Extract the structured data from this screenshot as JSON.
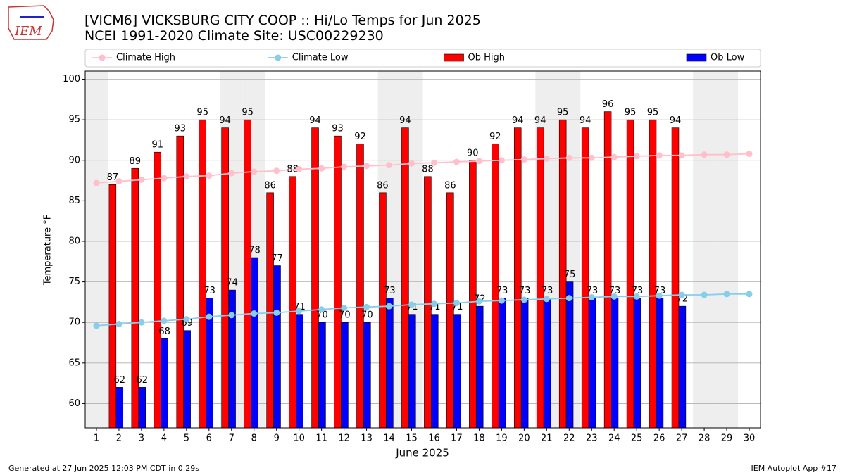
{
  "chart_data": {
    "type": "bar",
    "title": "[VICM6] VICKSBURG CITY COOP :: Hi/Lo Temps for Jun 2025",
    "subtitle": "NCEI 1991-2020 Climate Site: USC00229230",
    "x_label": "June 2025",
    "y_label": "Temperature °F",
    "logo_text": "IEM",
    "footer_left": "Generated at 27 Jun 2025 12:03 PM CDT in 0.29s",
    "footer_right": "IEM Autoplot App #17",
    "x": [
      1,
      2,
      3,
      4,
      5,
      6,
      7,
      8,
      9,
      10,
      11,
      12,
      13,
      14,
      15,
      16,
      17,
      18,
      19,
      20,
      21,
      22,
      23,
      24,
      25,
      26,
      27,
      28,
      29,
      30
    ],
    "xlim": [
      0.5,
      30.5
    ],
    "xticks": [
      1,
      2,
      3,
      4,
      5,
      6,
      7,
      8,
      9,
      10,
      11,
      12,
      13,
      14,
      15,
      16,
      17,
      18,
      19,
      20,
      21,
      22,
      23,
      24,
      25,
      26,
      27,
      28,
      29,
      30
    ],
    "ylim": [
      57,
      101
    ],
    "yticks": [
      60,
      65,
      70,
      75,
      80,
      85,
      90,
      95,
      100
    ],
    "grid": true,
    "legend": "top",
    "shaded_days": [
      1,
      7,
      8,
      14,
      15,
      21,
      22,
      28,
      29
    ],
    "shade_color": "#eeeeee",
    "series": [
      {
        "name": "Climate High",
        "type": "line",
        "color": "#ffc0cb",
        "values": [
          87.2,
          87.4,
          87.6,
          87.8,
          88.0,
          88.1,
          88.4,
          88.6,
          88.7,
          88.9,
          89.0,
          89.2,
          89.3,
          89.4,
          89.6,
          89.7,
          89.8,
          89.9,
          90.0,
          90.1,
          90.2,
          90.3,
          90.3,
          90.4,
          90.5,
          90.6,
          90.6,
          90.7,
          90.7,
          90.8
        ]
      },
      {
        "name": "Climate Low",
        "type": "line",
        "color": "#87ceeb",
        "values": [
          69.6,
          69.8,
          70.0,
          70.2,
          70.4,
          70.7,
          70.9,
          71.1,
          71.2,
          71.4,
          71.6,
          71.8,
          71.9,
          72.0,
          72.2,
          72.3,
          72.4,
          72.6,
          72.7,
          72.8,
          72.9,
          73.0,
          73.1,
          73.2,
          73.2,
          73.3,
          73.4,
          73.4,
          73.5,
          73.5
        ]
      },
      {
        "name": "Ob High",
        "type": "bar",
        "color": "#ff0000",
        "values": [
          null,
          87,
          89,
          91,
          93,
          95,
          94,
          95,
          86,
          88,
          94,
          93,
          92,
          86,
          94,
          88,
          86,
          90,
          92,
          94,
          94,
          95,
          94,
          96,
          95,
          95,
          94,
          null,
          null,
          null
        ]
      },
      {
        "name": "Ob Low",
        "type": "bar",
        "color": "#0000ff",
        "values": [
          null,
          62,
          62,
          68,
          69,
          73,
          74,
          78,
          77,
          71,
          70,
          70,
          70,
          73,
          71,
          71,
          71,
          72,
          73,
          73,
          73,
          75,
          73,
          73,
          73,
          73,
          72,
          null,
          null,
          null
        ]
      }
    ]
  }
}
